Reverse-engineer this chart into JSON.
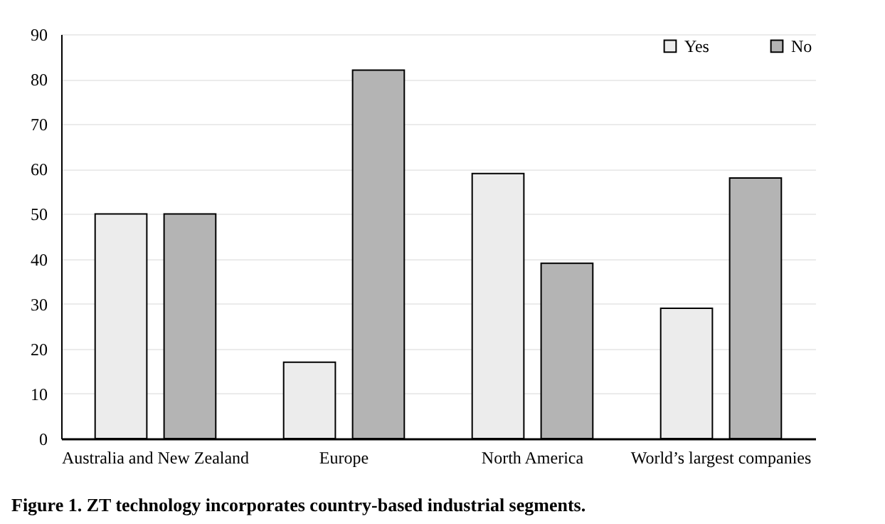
{
  "chart_data": {
    "type": "bar",
    "title": "Figure 1. ZT technology incorporates country-based industrial segments.",
    "categories": [
      "Australia and New Zealand",
      "Europe",
      "North America",
      "World’s largest companies"
    ],
    "series": [
      {
        "name": "Yes",
        "color": "#ececec",
        "values": [
          50,
          17,
          59,
          29
        ]
      },
      {
        "name": "No",
        "color": "#b4b4b4",
        "values": [
          50,
          82,
          39,
          58
        ]
      }
    ],
    "ylim": [
      0,
      90
    ],
    "yticks": [
      0,
      10,
      20,
      30,
      40,
      50,
      60,
      70,
      80,
      90
    ],
    "grid": "y",
    "legend": "top right"
  }
}
